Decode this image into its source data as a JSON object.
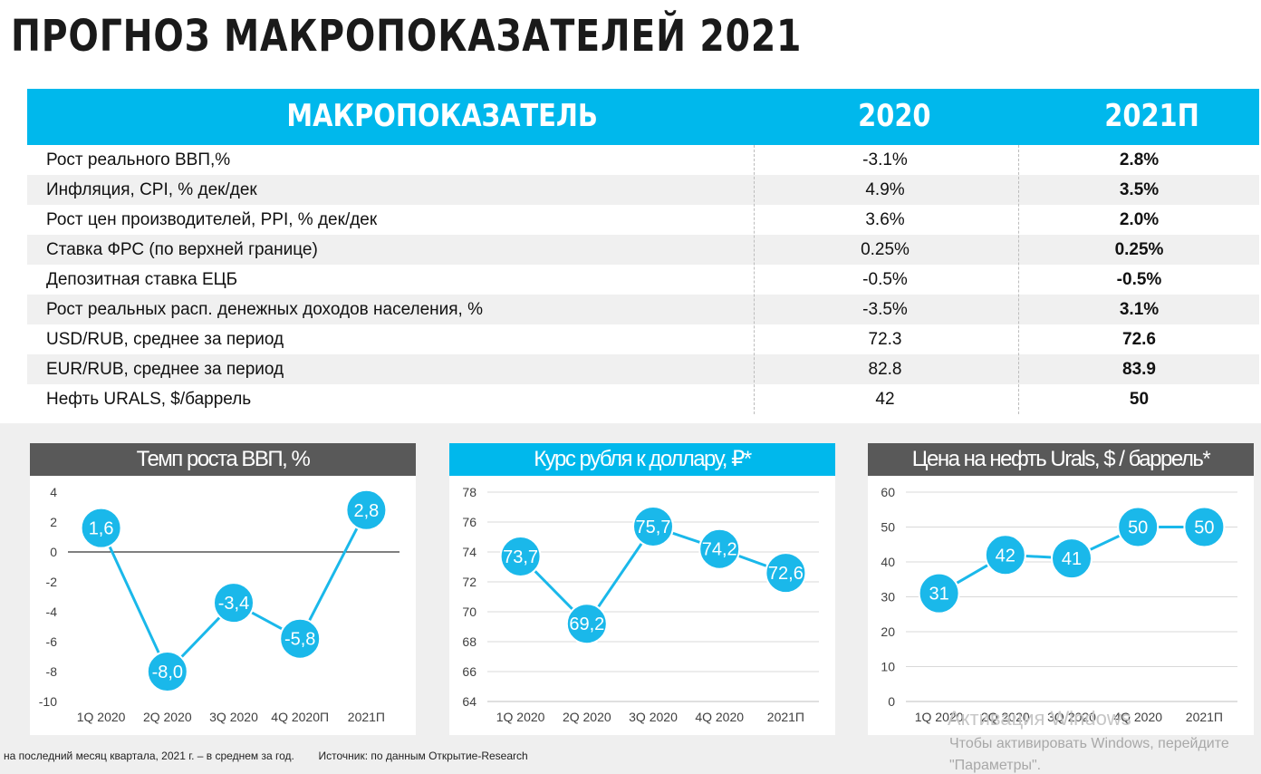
{
  "page": {
    "title": "ПРОГНОЗ МАКРОПОКАЗАТЕЛЕЙ 2021",
    "accent_color": "#00b8ec",
    "dark_color": "#595959"
  },
  "table": {
    "headers": [
      "МАКРОПОКАЗАТЕЛЬ",
      "2020",
      "2021П"
    ],
    "rows": [
      [
        "Рост реального ВВП,%",
        "-3.1%",
        "2.8%"
      ],
      [
        "Инфляция, CPI, % дек/дек",
        "4.9%",
        "3.5%"
      ],
      [
        "Рост цен производителей, PPI, % дек/дек",
        "3.6%",
        "2.0%"
      ],
      [
        "Ставка ФРС (по верхней границе)",
        "0.25%",
        "0.25%"
      ],
      [
        "Депозитная ставка ЕЦБ",
        "-0.5%",
        "-0.5%"
      ],
      [
        "Рост реальных расп. денежных доходов населения, %",
        "-3.5%",
        "3.1%"
      ],
      [
        "USD/RUB, среднее за период",
        "72.3",
        "72.6"
      ],
      [
        "EUR/RUB, среднее за период",
        "82.8",
        "83.9"
      ],
      [
        "Нефть URALS, $/баррель",
        "42",
        "50"
      ]
    ]
  },
  "chart_data": [
    {
      "type": "line",
      "title": "Темп роста ВВП, %",
      "title_style": "gray",
      "categories": [
        "1Q 2020",
        "2Q 2020",
        "3Q 2020",
        "4Q 2020П",
        "2021П"
      ],
      "series": [
        {
          "values": [
            1.6,
            -8.0,
            -3.4,
            -5.8,
            2.8
          ],
          "labels": [
            "1,6",
            "-8,0",
            "-3,4",
            "-5,8",
            "2,8"
          ]
        }
      ],
      "ylim": [
        -10,
        4
      ],
      "yticks": [
        4,
        2,
        0,
        -2,
        -4,
        -6,
        -8,
        -10
      ],
      "zero_line": true,
      "grid": false,
      "color": "#1ab8ea"
    },
    {
      "type": "line",
      "title": "Курс рубля к доллару, ₽*",
      "title_style": "blue",
      "categories": [
        "1Q 2020",
        "2Q 2020",
        "3Q 2020",
        "4Q 2020",
        "2021П"
      ],
      "series": [
        {
          "values": [
            73.7,
            69.2,
            75.7,
            74.2,
            72.6
          ],
          "labels": [
            "73,7",
            "69,2",
            "75,7",
            "74,2",
            "72,6"
          ]
        }
      ],
      "ylim": [
        64,
        78
      ],
      "yticks": [
        78,
        76,
        74,
        72,
        70,
        68,
        66,
        64
      ],
      "zero_line": false,
      "grid": true,
      "color": "#1ab8ea"
    },
    {
      "type": "line",
      "title": "Цена на нефть Urals, $ / баррель*",
      "title_style": "gray",
      "categories": [
        "1Q 2020",
        "2Q 2020",
        "3Q 2020",
        "4Q 2020",
        "2021П"
      ],
      "series": [
        {
          "values": [
            31,
            42,
            41,
            50,
            50
          ],
          "labels": [
            "31",
            "42",
            "41",
            "50",
            "50"
          ]
        }
      ],
      "ylim": [
        0,
        60
      ],
      "yticks": [
        60,
        50,
        40,
        30,
        20,
        10,
        0
      ],
      "zero_line": false,
      "grid": true,
      "color": "#1ab8ea"
    }
  ],
  "footer": {
    "note": "на последний месяц квартала, 2021 г. – в среднем за год.",
    "source": "Источник: по данным Открытие-Research"
  },
  "watermark": {
    "line1": "Активация Windows",
    "line2": "Чтобы активировать Windows, перейдите",
    "line3": "\"Параметры\"."
  }
}
